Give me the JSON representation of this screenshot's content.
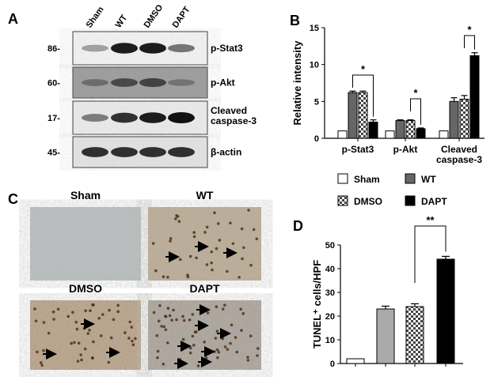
{
  "panels": [
    "A",
    "B",
    "C",
    "D"
  ],
  "blot": {
    "lanes": [
      "Sham",
      "WT",
      "DMSO",
      "DAPT"
    ],
    "rows": [
      {
        "mw": "86-",
        "label": "p-Stat3"
      },
      {
        "mw": "60-",
        "label": "p-Akt"
      },
      {
        "mw": "17-",
        "label": "Cleaved caspase-3"
      },
      {
        "mw": "45-",
        "label": "β-actin"
      }
    ]
  },
  "micrographs": [
    "Sham",
    "WT",
    "DMSO",
    "DAPT"
  ],
  "chart_data": [
    {
      "type": "bar",
      "ylabel": "Relative  intensity",
      "categories": [
        "p-Stat3",
        "p-Akt",
        "Cleaved caspase-3"
      ],
      "series": [
        {
          "name": "Sham",
          "color": "#ffffff",
          "values": [
            1,
            1,
            1
          ],
          "errors": [
            0,
            0,
            0
          ]
        },
        {
          "name": "WT",
          "color": "#666666",
          "values": [
            6.2,
            2.4,
            5
          ],
          "errors": [
            0.2,
            0.1,
            0.5
          ]
        },
        {
          "name": "DMSO",
          "color": "#ffffff",
          "pattern": "checkerboard",
          "values": [
            6.2,
            2.4,
            5.3
          ],
          "errors": [
            0.2,
            0.1,
            0.5
          ]
        },
        {
          "name": "DAPT",
          "color": "#000000",
          "values": [
            2.2,
            1.3,
            11.2
          ],
          "errors": [
            0.3,
            0.1,
            0.4
          ]
        }
      ],
      "ylim": [
        0,
        15
      ],
      "yticks": [
        0,
        5,
        10,
        15
      ],
      "annotations": [
        "*",
        "*",
        "*"
      ]
    },
    {
      "type": "bar",
      "ylabel": "TUNEL⁺ cells/HPF",
      "categories": [
        null,
        null,
        null,
        null
      ],
      "values": [
        2,
        23,
        24,
        44
      ],
      "errors": [
        0,
        1.2,
        1.2,
        1.2
      ],
      "colors": [
        "#ffffff",
        "#aaaaaa",
        "checkerboard",
        "#000000"
      ],
      "ylim": [
        0,
        50
      ],
      "yticks": [
        0,
        10,
        20,
        30,
        40,
        50
      ],
      "annotations": [
        "**"
      ]
    }
  ]
}
